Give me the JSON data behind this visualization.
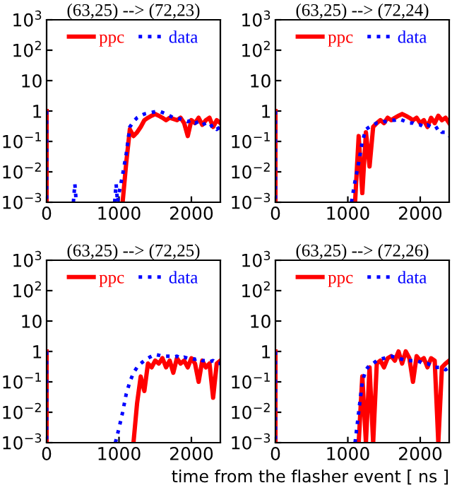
{
  "chart_data": [
    {
      "type": "line",
      "title": "(63,25) --> (72,23)",
      "xlim": [
        0,
        2400
      ],
      "xticks": [
        0,
        1000,
        2000
      ],
      "ylim": [
        0.001,
        1000
      ],
      "log": "y",
      "yticks": [
        {
          "value": 0.001,
          "label": "10$^{−3}$"
        },
        {
          "value": 0.01,
          "label": "10$^{−2}$"
        },
        {
          "value": 0.1,
          "label": "10$^{−1}$"
        },
        {
          "value": 1,
          "label": "1"
        },
        {
          "value": 10,
          "label": "10"
        },
        {
          "value": 100,
          "label": "10$^{2}$"
        },
        {
          "value": 1000,
          "label": "10$^{3}$"
        }
      ],
      "legend": "top",
      "grid": false,
      "series": [
        {
          "name": "ppc",
          "color": "#ff0000",
          "line_style": "solid",
          "x": [
            0,
            0,
            20,
            1050,
            1100,
            1150,
            1200,
            1250,
            1300,
            1350,
            1400,
            1450,
            1500,
            1550,
            1600,
            1650,
            1700,
            1750,
            1800,
            1850,
            1900,
            1950,
            2000,
            2050,
            2100,
            2150,
            2200,
            2250,
            2300,
            2350,
            2400
          ],
          "values": [
            1,
            0.001,
            null,
            0.001,
            0.02,
            0.25,
            0.15,
            0.2,
            0.3,
            0.5,
            0.6,
            0.7,
            0.8,
            0.7,
            0.6,
            0.5,
            0.6,
            0.55,
            0.5,
            0.6,
            0.4,
            0.15,
            0.5,
            0.4,
            0.6,
            0.35,
            0.5,
            0.6,
            0.3,
            0.5,
            0.4
          ]
        },
        {
          "name": "data",
          "color": "#0000ff",
          "line_style": "dotted",
          "x": [
            0,
            0,
            20,
            370,
            390,
            410,
            430,
            940,
            960,
            980,
            1000,
            1050,
            1100,
            1150,
            1200,
            1250,
            1300,
            1350,
            1400,
            1450,
            1500,
            1550,
            1600,
            1650,
            1700,
            1750,
            1800,
            1850,
            1900,
            1950,
            2000,
            2050,
            2100,
            2150,
            2200,
            2250,
            2300,
            2350,
            2400
          ],
          "values": [
            1,
            0.001,
            null,
            0.001,
            0.004,
            0.001,
            null,
            0.001,
            0.004,
            0.001,
            0.002,
            0.008,
            0.04,
            0.3,
            0.45,
            0.6,
            0.7,
            0.8,
            0.85,
            0.9,
            0.95,
            1.0,
            0.9,
            0.8,
            0.7,
            0.6,
            0.6,
            0.55,
            0.5,
            0.45,
            0.5,
            0.4,
            0.45,
            0.35,
            0.4,
            0.3,
            0.35,
            0.25,
            0.3
          ]
        }
      ]
    },
    {
      "type": "line",
      "title": "(63,25) --> (72,24)",
      "xlim": [
        0,
        2400
      ],
      "xticks": [
        0,
        1000,
        2000
      ],
      "ylim": [
        0.001,
        1000
      ],
      "log": "y",
      "yticks": [
        {
          "value": 0.001,
          "label": "10$^{−3}$"
        },
        {
          "value": 0.01,
          "label": "10$^{−2}$"
        },
        {
          "value": 0.1,
          "label": "10$^{−1}$"
        },
        {
          "value": 1,
          "label": "1"
        },
        {
          "value": 10,
          "label": "10"
        },
        {
          "value": 100,
          "label": "10$^{2}$"
        },
        {
          "value": 1000,
          "label": "10$^{3}$"
        }
      ],
      "legend": "top",
      "grid": false,
      "series": [
        {
          "name": "ppc",
          "color": "#ff0000",
          "line_style": "solid",
          "x": [
            0,
            0,
            20,
            1100,
            1150,
            1200,
            1250,
            1300,
            1350,
            1400,
            1450,
            1500,
            1550,
            1600,
            1650,
            1700,
            1750,
            1800,
            1850,
            1900,
            1950,
            2000,
            2050,
            2100,
            2150,
            2200,
            2250,
            2300,
            2350,
            2400
          ],
          "values": [
            1,
            0.001,
            null,
            0.001,
            0.15,
            0.002,
            0.2,
            0.015,
            0.3,
            0.4,
            0.5,
            0.4,
            0.6,
            0.5,
            0.6,
            0.7,
            0.8,
            0.7,
            0.6,
            0.5,
            0.6,
            0.4,
            0.5,
            0.3,
            0.6,
            0.4,
            0.7,
            0.5,
            0.6,
            0.4
          ]
        },
        {
          "name": "data",
          "color": "#0000ff",
          "line_style": "dotted",
          "x": [
            0,
            0,
            20,
            1050,
            1100,
            1150,
            1200,
            1250,
            1300,
            1350,
            1400,
            1450,
            1500,
            1550,
            1600,
            1650,
            1700,
            1750,
            1800,
            1850,
            1900,
            1950,
            2000,
            2050,
            2100,
            2150,
            2200,
            2250,
            2300,
            2350,
            2400
          ],
          "values": [
            1,
            0.001,
            null,
            0.001,
            0.005,
            0.02,
            0.1,
            0.25,
            0.3,
            0.35,
            0.4,
            0.4,
            0.45,
            0.45,
            0.5,
            0.5,
            0.55,
            0.5,
            0.45,
            0.4,
            0.4,
            0.35,
            0.35,
            0.3,
            0.35,
            0.3,
            0.25,
            0.3,
            0.2,
            0.2,
            0.15
          ]
        }
      ]
    },
    {
      "type": "line",
      "title": "(63,25) --> (72,25)",
      "xlim": [
        0,
        2400
      ],
      "xticks": [
        0,
        1000,
        2000
      ],
      "ylim": [
        0.001,
        1000
      ],
      "log": "y",
      "yticks": [
        {
          "value": 0.001,
          "label": "10$^{−3}$"
        },
        {
          "value": 0.01,
          "label": "10$^{−2}$"
        },
        {
          "value": 0.1,
          "label": "10$^{−1}$"
        },
        {
          "value": 1,
          "label": "1"
        },
        {
          "value": 10,
          "label": "10"
        },
        {
          "value": 100,
          "label": "10$^{2}$"
        },
        {
          "value": 1000,
          "label": "10$^{3}$"
        }
      ],
      "legend": "top",
      "grid": false,
      "series": [
        {
          "name": "ppc",
          "color": "#ff0000",
          "line_style": "solid",
          "x": [
            0,
            0,
            20,
            1200,
            1250,
            1300,
            1350,
            1400,
            1450,
            1500,
            1550,
            1600,
            1650,
            1700,
            1750,
            1800,
            1850,
            1900,
            1950,
            2000,
            2050,
            2100,
            2150,
            2200,
            2250,
            2300,
            2350,
            2400
          ],
          "values": [
            1,
            0.001,
            null,
            0.001,
            0.02,
            0.15,
            0.05,
            0.4,
            0.3,
            0.5,
            0.4,
            0.6,
            0.3,
            0.5,
            0.2,
            0.6,
            0.4,
            0.5,
            0.3,
            0.6,
            0.4,
            0.1,
            0.5,
            0.3,
            0.4,
            0.03,
            0.4,
            0.5
          ]
        },
        {
          "name": "data",
          "color": "#0000ff",
          "line_style": "dotted",
          "x": [
            0,
            0,
            20,
            950,
            1000,
            1050,
            1100,
            1150,
            1200,
            1250,
            1300,
            1350,
            1400,
            1450,
            1500,
            1550,
            1600,
            1650,
            1700,
            1750,
            1800,
            1850,
            1900,
            1950,
            2000,
            2050,
            2100,
            2150,
            2200,
            2250,
            2300,
            2350,
            2400
          ],
          "values": [
            1,
            0.001,
            null,
            0.001,
            0.003,
            0.01,
            0.04,
            0.1,
            0.2,
            0.3,
            0.4,
            0.5,
            0.6,
            0.7,
            0.8,
            0.75,
            0.7,
            0.7,
            0.7,
            0.65,
            0.7,
            0.6,
            0.65,
            0.6,
            0.6,
            0.55,
            0.6,
            0.5,
            0.5,
            0.45,
            0.5,
            0.4,
            0.4
          ]
        }
      ]
    },
    {
      "type": "line",
      "title": "(63,25) --> (72,26)",
      "xlabel": "time from the flasher event [ ns ]",
      "xlim": [
        0,
        2400
      ],
      "xticks": [
        0,
        1000,
        2000
      ],
      "ylim": [
        0.001,
        1000
      ],
      "log": "y",
      "yticks": [
        {
          "value": 0.001,
          "label": "10$^{−3}$"
        },
        {
          "value": 0.01,
          "label": "10$^{−2}$"
        },
        {
          "value": 0.1,
          "label": "10$^{−1}$"
        },
        {
          "value": 1,
          "label": "1"
        },
        {
          "value": 10,
          "label": "10"
        },
        {
          "value": 100,
          "label": "10$^{2}$"
        },
        {
          "value": 1000,
          "label": "10$^{3}$"
        }
      ],
      "legend": "top",
      "grid": false,
      "series": [
        {
          "name": "ppc",
          "color": "#ff0000",
          "line_style": "solid",
          "x": [
            0,
            0,
            20,
            1150,
            1200,
            1250,
            1300,
            1350,
            1400,
            1450,
            1500,
            1550,
            1600,
            1650,
            1700,
            1750,
            1800,
            1850,
            1900,
            1950,
            2000,
            2050,
            2100,
            2150,
            2200,
            2250,
            2300,
            2350,
            2400
          ],
          "values": [
            1,
            0.001,
            null,
            0.001,
            0.15,
            0.001,
            0.3,
            0.001,
            0.4,
            0.5,
            0.3,
            0.6,
            0.7,
            0.5,
            1.0,
            0.4,
            1.0,
            0.6,
            0.1,
            0.7,
            0.5,
            0.6,
            0.3,
            0.6,
            0.5,
            0.001,
            0.3,
            0.4,
            0.5
          ]
        },
        {
          "name": "data",
          "color": "#0000ff",
          "line_style": "dotted",
          "x": [
            0,
            0,
            20,
            1100,
            1150,
            1200,
            1250,
            1300,
            1350,
            1400,
            1450,
            1500,
            1550,
            1600,
            1650,
            1700,
            1750,
            1800,
            1850,
            1900,
            1950,
            2000,
            2050,
            2100,
            2150,
            2200,
            2250,
            2300,
            2350,
            2400
          ],
          "values": [
            1,
            0.001,
            null,
            0.001,
            0.01,
            0.1,
            0.25,
            0.35,
            0.4,
            0.5,
            0.55,
            0.6,
            0.65,
            0.7,
            0.65,
            0.6,
            0.55,
            0.5,
            0.5,
            0.5,
            0.5,
            0.45,
            0.4,
            0.4,
            0.35,
            0.3,
            0.3,
            0.3,
            0.25,
            0.3
          ]
        }
      ]
    }
  ]
}
